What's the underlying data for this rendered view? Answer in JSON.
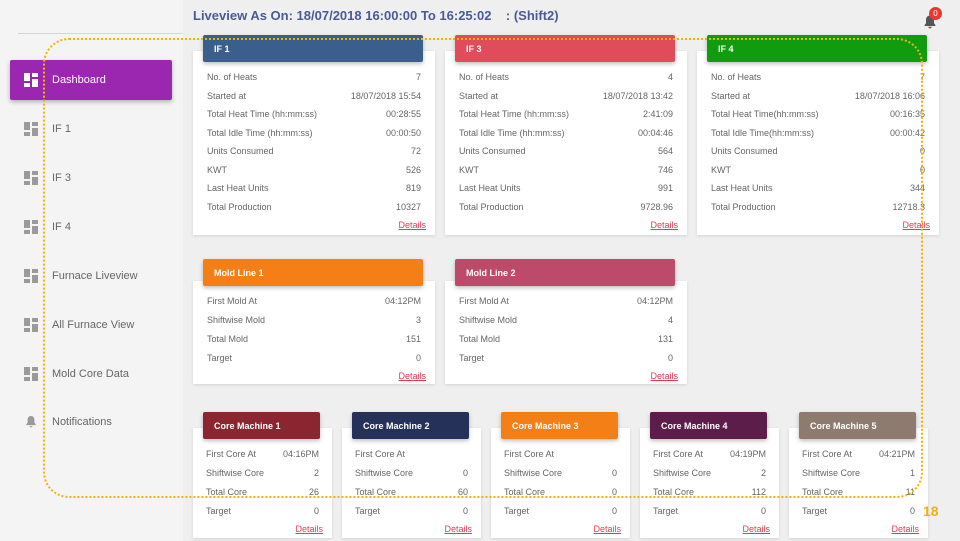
{
  "header": {
    "title": "Liveview As On: 18/07/2018 16:00:00 To 16:25:02    : (Shift2)",
    "notification_count": "0"
  },
  "sidebar": {
    "items": [
      {
        "label": "Dashboard",
        "icon": "dashboard-icon",
        "active": true
      },
      {
        "label": "IF 1",
        "icon": "dashboard-icon"
      },
      {
        "label": "IF 3",
        "icon": "dashboard-icon"
      },
      {
        "label": "IF 4",
        "icon": "dashboard-icon"
      },
      {
        "label": "Furnace Liveview",
        "icon": "dashboard-icon"
      },
      {
        "label": "All Furnace View",
        "icon": "dashboard-icon"
      },
      {
        "label": "Mold Core Data",
        "icon": "dashboard-icon"
      },
      {
        "label": "Notifications",
        "icon": "bell-icon"
      }
    ]
  },
  "furnaces": [
    {
      "title": "IF 1",
      "color": "#3a5f8c",
      "rows": [
        {
          "label": "No. of Heats",
          "value": "7"
        },
        {
          "label": "Started at",
          "value": "18/07/2018 15:54"
        },
        {
          "label": "Total Heat Time (hh:mm:ss)",
          "value": "00:28:55"
        },
        {
          "label": "Total Idle Time (hh:mm:ss)",
          "value": "00:00:50"
        },
        {
          "label": "Units Consumed",
          "value": "72"
        },
        {
          "label": "KWT",
          "value": "526"
        },
        {
          "label": "Last Heat Units",
          "value": "819"
        },
        {
          "label": "Total Production",
          "value": "10327"
        }
      ],
      "details": "Details"
    },
    {
      "title": "IF 3",
      "color": "#e14c5b",
      "rows": [
        {
          "label": "No. of Heats",
          "value": "4"
        },
        {
          "label": "Started at",
          "value": "18/07/2018 13:42"
        },
        {
          "label": "Total Heat Time (hh:mm:ss)",
          "value": "2:41:09"
        },
        {
          "label": "Total Idle Time (hh:mm:ss)",
          "value": "00:04:46"
        },
        {
          "label": "Units Consumed",
          "value": "564"
        },
        {
          "label": "KWT",
          "value": "746"
        },
        {
          "label": "Last Heat Units",
          "value": "991"
        },
        {
          "label": "Total Production",
          "value": "9728.96"
        }
      ],
      "details": "Details"
    },
    {
      "title": "IF 4",
      "color": "#119b0e",
      "rows": [
        {
          "label": "No. of Heats",
          "value": "7"
        },
        {
          "label": "Started at",
          "value": "18/07/2018 16:06"
        },
        {
          "label": "Total Heat Time(hh:mm:ss)",
          "value": "00:16:35"
        },
        {
          "label": "Total Idle Time(hh:mm:ss)",
          "value": "00:00:42"
        },
        {
          "label": "Units Consumed",
          "value": "0"
        },
        {
          "label": "KWT",
          "value": "0"
        },
        {
          "label": "Last Heat Units",
          "value": "344"
        },
        {
          "label": "Total Production",
          "value": "12718.3"
        }
      ],
      "details": "Details"
    }
  ],
  "mold_lines": [
    {
      "title": "Mold Line 1",
      "color": "#f57f17",
      "rows": [
        {
          "label": "First Mold At",
          "value": "04:12PM"
        },
        {
          "label": "Shiftwise Mold",
          "value": "3"
        },
        {
          "label": "Total Mold",
          "value": "151"
        },
        {
          "label": "Target",
          "value": "0"
        }
      ],
      "details": "Details"
    },
    {
      "title": "Mold Line 2",
      "color": "#bc4a6a",
      "rows": [
        {
          "label": "First Mold At",
          "value": "04:12PM"
        },
        {
          "label": "Shiftwise Mold",
          "value": "4"
        },
        {
          "label": "Total Mold",
          "value": "131"
        },
        {
          "label": "Target",
          "value": "0"
        }
      ],
      "details": "Details"
    }
  ],
  "core_machines": [
    {
      "title": "Core Machine 1",
      "color": "#8b2530",
      "rows": [
        {
          "label": "First Core At",
          "value": "04:16PM"
        },
        {
          "label": "Shiftwise Core",
          "value": "2"
        },
        {
          "label": "Total Core",
          "value": "26"
        },
        {
          "label": "Target",
          "value": "0"
        }
      ],
      "details": "Details"
    },
    {
      "title": "Core Machine 2",
      "color": "#263159",
      "rows": [
        {
          "label": "First Core At",
          "value": ""
        },
        {
          "label": "Shiftwise Core",
          "value": "0"
        },
        {
          "label": "Total Core",
          "value": "60"
        },
        {
          "label": "Target",
          "value": "0"
        }
      ],
      "details": "Details"
    },
    {
      "title": "Core Machine 3",
      "color": "#f57f17",
      "rows": [
        {
          "label": "First Core At",
          "value": ""
        },
        {
          "label": "Shiftwise Core",
          "value": "0"
        },
        {
          "label": "Total Core",
          "value": "0"
        },
        {
          "label": "Target",
          "value": "0"
        }
      ],
      "details": "Details"
    },
    {
      "title": "Core Machine 4",
      "color": "#5c1d4b",
      "rows": [
        {
          "label": "First Core At",
          "value": "04:19PM"
        },
        {
          "label": "Shiftwise Core",
          "value": "2"
        },
        {
          "label": "Total Core",
          "value": "112"
        },
        {
          "label": "Target",
          "value": "0"
        }
      ],
      "details": "Details"
    },
    {
      "title": "Core Machine 5",
      "color": "#8d7b70",
      "rows": [
        {
          "label": "First Core At",
          "value": "04:21PM"
        },
        {
          "label": "Shiftwise Core",
          "value": "1"
        },
        {
          "label": "Total Core",
          "value": "11"
        },
        {
          "label": "Target",
          "value": "0"
        }
      ],
      "details": "Details"
    }
  ],
  "overlay": {
    "badge": "18",
    "color": "#f0b400"
  }
}
